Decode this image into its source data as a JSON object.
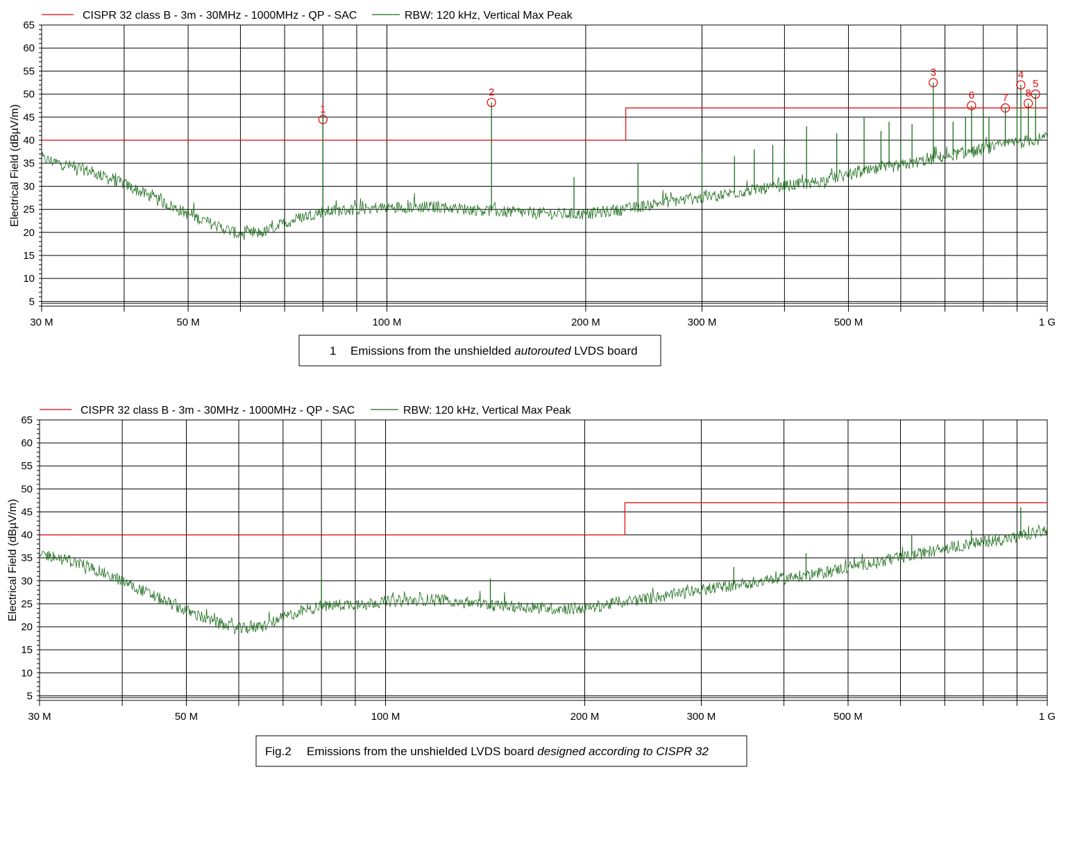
{
  "colors": {
    "limit": "#e00000",
    "trace": "#1a6b1a",
    "marker": "#e00000",
    "grid": "#000000"
  },
  "chart_data": [
    {
      "type": "line",
      "legend": [
        {
          "name": "CISPR 32 class B - 3m - 30MHz - 1000MHz - QP - SAC",
          "color": "#e00000"
        },
        {
          "name": "RBW: 120 kHz, Vertical Max Peak",
          "color": "#1a6b1a"
        }
      ],
      "legend_placement": "top",
      "xlabel": "",
      "ylabel": "Electrical Field (dBµV/m)",
      "xscale": "log",
      "xlim": [
        30,
        1000
      ],
      "ylim": [
        4,
        65
      ],
      "grid": true,
      "xticks": [
        {
          "value": 30,
          "label": "30 M"
        },
        {
          "value": 50,
          "label": "50 M"
        },
        {
          "value": 100,
          "label": "100 M"
        },
        {
          "value": 200,
          "label": "200 M"
        },
        {
          "value": 300,
          "label": "300 M"
        },
        {
          "value": 500,
          "label": "500 M"
        },
        {
          "value": 1000,
          "label": "1 G"
        }
      ],
      "yticks": [
        5,
        10,
        15,
        20,
        25,
        30,
        35,
        40,
        45,
        50,
        55,
        60,
        65
      ],
      "limit_line": {
        "name": "CISPR 32 class B - 3m - 30MHz - 1000MHz - QP - SAC",
        "segments": [
          {
            "x": [
              30,
              230
            ],
            "y": 40
          },
          {
            "x": [
              230,
              1000
            ],
            "y": 47
          }
        ]
      },
      "series": [
        {
          "name": "RBW: 120 kHz, Vertical Max Peak",
          "baseline": [
            [
              30,
              36
            ],
            [
              35,
              33.5
            ],
            [
              40,
              30.5
            ],
            [
              45,
              27
            ],
            [
              50,
              24
            ],
            [
              55,
              21.5
            ],
            [
              60,
              19.5
            ],
            [
              65,
              20
            ],
            [
              70,
              22
            ],
            [
              75,
              23.5
            ],
            [
              80,
              24.5
            ],
            [
              90,
              25
            ],
            [
              100,
              25.5
            ],
            [
              120,
              25.5
            ],
            [
              150,
              24.5
            ],
            [
              180,
              24
            ],
            [
              200,
              24
            ],
            [
              230,
              25
            ],
            [
              260,
              26.5
            ],
            [
              300,
              27.5
            ],
            [
              350,
              29
            ],
            [
              400,
              30
            ],
            [
              450,
              31
            ],
            [
              500,
              32.5
            ],
            [
              600,
              34.5
            ],
            [
              700,
              36.5
            ],
            [
              800,
              38
            ],
            [
              900,
              39.5
            ],
            [
              1000,
              40.5
            ]
          ],
          "spikes": [
            [
              80,
              44.5
            ],
            [
              144,
              48.2
            ],
            [
              192,
              32
            ],
            [
              240,
              35
            ],
            [
              300,
              37
            ],
            [
              336,
              36.5
            ],
            [
              360,
              38
            ],
            [
              384,
              39
            ],
            [
              400,
              38.5
            ],
            [
              432,
              43
            ],
            [
              480,
              41.5
            ],
            [
              528,
              45
            ],
            [
              560,
              42
            ],
            [
              576,
              44
            ],
            [
              600,
              40
            ],
            [
              624,
              43.5
            ],
            [
              672,
              52.5
            ],
            [
              720,
              44
            ],
            [
              752,
              45
            ],
            [
              768,
              47.5
            ],
            [
              800,
              46
            ],
            [
              816,
              45
            ],
            [
              864,
              47
            ],
            [
              900,
              48
            ],
            [
              912,
              52
            ],
            [
              936,
              48
            ],
            [
              960,
              50
            ]
          ]
        }
      ],
      "markers": [
        {
          "label": "1",
          "x": 80,
          "y": 44.5
        },
        {
          "label": "2",
          "x": 144,
          "y": 48.2
        },
        {
          "label": "3",
          "x": 672,
          "y": 52.5
        },
        {
          "label": "4",
          "x": 912,
          "y": 52
        },
        {
          "label": "5",
          "x": 960,
          "y": 50
        },
        {
          "label": "6",
          "x": 768,
          "y": 47.5
        },
        {
          "label": "7",
          "x": 864,
          "y": 47
        },
        {
          "label": "8",
          "x": 936,
          "y": 48
        }
      ],
      "caption": {
        "number": "1",
        "text_before": "Emissions from the unshielded ",
        "text_italic": "autorouted",
        "text_after": " LVDS board"
      }
    },
    {
      "type": "line",
      "legend": [
        {
          "name": "CISPR 32 class B - 3m - 30MHz - 1000MHz - QP - SAC",
          "color": "#e00000"
        },
        {
          "name": "RBW: 120 kHz, Vertical Max Peak",
          "color": "#1a6b1a"
        }
      ],
      "legend_placement": "top",
      "xlabel": "",
      "ylabel": "Electrical Field (dBµV/m)",
      "xscale": "log",
      "xlim": [
        30,
        1000
      ],
      "ylim": [
        4,
        65
      ],
      "grid": true,
      "xticks": [
        {
          "value": 30,
          "label": "30 M"
        },
        {
          "value": 50,
          "label": "50 M"
        },
        {
          "value": 100,
          "label": "100 M"
        },
        {
          "value": 200,
          "label": "200 M"
        },
        {
          "value": 300,
          "label": "300 M"
        },
        {
          "value": 500,
          "label": "500 M"
        },
        {
          "value": 1000,
          "label": "1 G"
        }
      ],
      "yticks": [
        5,
        10,
        15,
        20,
        25,
        30,
        35,
        40,
        45,
        50,
        55,
        60,
        65
      ],
      "limit_line": {
        "name": "CISPR 32 class B - 3m - 30MHz - 1000MHz - QP - SAC",
        "segments": [
          {
            "x": [
              30,
              230
            ],
            "y": 40
          },
          {
            "x": [
              230,
              1000
            ],
            "y": 47
          }
        ]
      },
      "series": [
        {
          "name": "RBW: 120 kHz, Vertical Max Peak",
          "baseline": [
            [
              30,
              36
            ],
            [
              35,
              33.5
            ],
            [
              40,
              30
            ],
            [
              45,
              26.5
            ],
            [
              50,
              23.5
            ],
            [
              55,
              21
            ],
            [
              60,
              19.5
            ],
            [
              65,
              20
            ],
            [
              70,
              22
            ],
            [
              75,
              23.5
            ],
            [
              80,
              24.5
            ],
            [
              90,
              25
            ],
            [
              100,
              25.5
            ],
            [
              120,
              26
            ],
            [
              150,
              24.5
            ],
            [
              180,
              24
            ],
            [
              200,
              24
            ],
            [
              230,
              25.5
            ],
            [
              260,
              26.5
            ],
            [
              300,
              28
            ],
            [
              350,
              29.5
            ],
            [
              400,
              30.5
            ],
            [
              450,
              31.5
            ],
            [
              500,
              33
            ],
            [
              600,
              35
            ],
            [
              700,
              37
            ],
            [
              800,
              38.5
            ],
            [
              900,
              39.5
            ],
            [
              1000,
              41
            ]
          ],
          "spikes": [
            [
              80,
              31
            ],
            [
              144,
              30.5
            ],
            [
              336,
              33
            ],
            [
              432,
              36
            ],
            [
              624,
              40
            ],
            [
              768,
              41
            ],
            [
              816,
              40
            ],
            [
              912,
              46
            ]
          ]
        }
      ],
      "markers": [],
      "caption": {
        "number": "Fig.2",
        "text_before": "Emissions from the unshielded LVDS board ",
        "text_italic": "designed according to CISPR 32",
        "text_after": ""
      }
    }
  ]
}
